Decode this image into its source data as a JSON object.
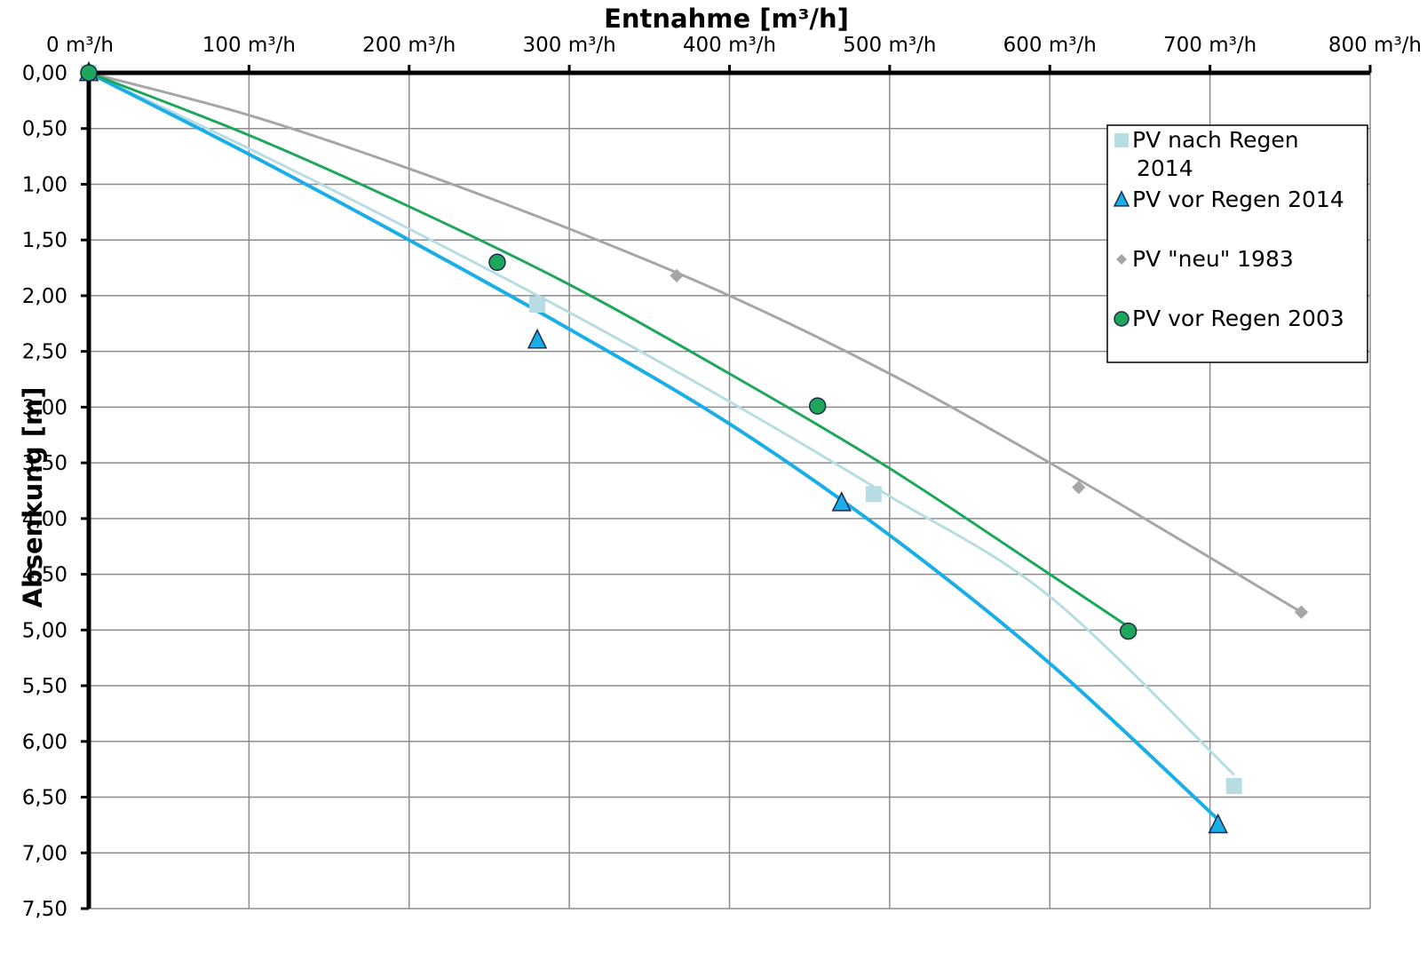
{
  "chart_data": {
    "type": "scatter",
    "title": "",
    "xlabel": "Entnahme [m³/h]",
    "ylabel": "Absenkung [m]",
    "xlim": [
      0,
      800
    ],
    "ylim": [
      0,
      7.5
    ],
    "x_axis_position": "top",
    "y_axis_inverted": true,
    "grid": true,
    "legend_position": "top-right",
    "x_ticks": [
      "0 m³/h",
      "100 m³/h",
      "200 m³/h",
      "300 m³/h",
      "400 m³/h",
      "500 m³/h",
      "600 m³/h",
      "700 m³/h",
      "800 m³/h"
    ],
    "x_tick_values": [
      0,
      100,
      200,
      300,
      400,
      500,
      600,
      700,
      800
    ],
    "y_ticks": [
      "0,00",
      "0,50",
      "1,00",
      "1,50",
      "2,00",
      "2,50",
      "3,00",
      "3,50",
      "4,00",
      "4,50",
      "5,00",
      "5,50",
      "6,00",
      "6,50",
      "7,00",
      "7,50"
    ],
    "y_tick_values": [
      0,
      0.5,
      1,
      1.5,
      2,
      2.5,
      3,
      3.5,
      4,
      4.5,
      5,
      5.5,
      6,
      6.5,
      7,
      7.5
    ],
    "series": [
      {
        "name": "PV nach Regen 2014",
        "marker": "square",
        "color": "#b7dde3",
        "points": [
          [
            0,
            0
          ],
          [
            280,
            2.08
          ],
          [
            490,
            3.78
          ],
          [
            715,
            6.4
          ]
        ],
        "trend": [
          [
            0,
            0
          ],
          [
            100,
            0.68
          ],
          [
            200,
            1.4
          ],
          [
            300,
            2.15
          ],
          [
            400,
            2.95
          ],
          [
            500,
            3.8
          ],
          [
            600,
            4.7
          ],
          [
            715,
            6.3
          ]
        ]
      },
      {
        "name": "PV vor Regen 2014",
        "marker": "triangle",
        "color": "#1aaee8",
        "points": [
          [
            0,
            0
          ],
          [
            280,
            2.4
          ],
          [
            470,
            3.86
          ],
          [
            705,
            6.75
          ]
        ],
        "trend": [
          [
            0,
            0
          ],
          [
            100,
            0.73
          ],
          [
            200,
            1.5
          ],
          [
            300,
            2.3
          ],
          [
            400,
            3.15
          ],
          [
            500,
            4.15
          ],
          [
            600,
            5.3
          ],
          [
            705,
            6.7
          ]
        ]
      },
      {
        "name": "PV \"neu\" 1983",
        "marker": "diamond",
        "color": "#a6a6a6",
        "points": [
          [
            0,
            0
          ],
          [
            367,
            1.82
          ],
          [
            618,
            3.72
          ],
          [
            757,
            4.84
          ]
        ],
        "trend": [
          [
            0,
            0
          ],
          [
            100,
            0.38
          ],
          [
            200,
            0.86
          ],
          [
            300,
            1.4
          ],
          [
            400,
            2.0
          ],
          [
            500,
            2.7
          ],
          [
            600,
            3.5
          ],
          [
            700,
            4.35
          ],
          [
            757,
            4.84
          ]
        ]
      },
      {
        "name": "PV vor Regen 2003",
        "marker": "circle",
        "color": "#1ea65a",
        "points": [
          [
            0,
            0
          ],
          [
            255,
            1.7
          ],
          [
            455,
            2.99
          ],
          [
            649,
            5.01
          ]
        ],
        "trend": [
          [
            0,
            0
          ],
          [
            100,
            0.56
          ],
          [
            200,
            1.2
          ],
          [
            300,
            1.9
          ],
          [
            400,
            2.7
          ],
          [
            500,
            3.55
          ],
          [
            600,
            4.5
          ],
          [
            649,
            4.97
          ]
        ]
      }
    ]
  }
}
